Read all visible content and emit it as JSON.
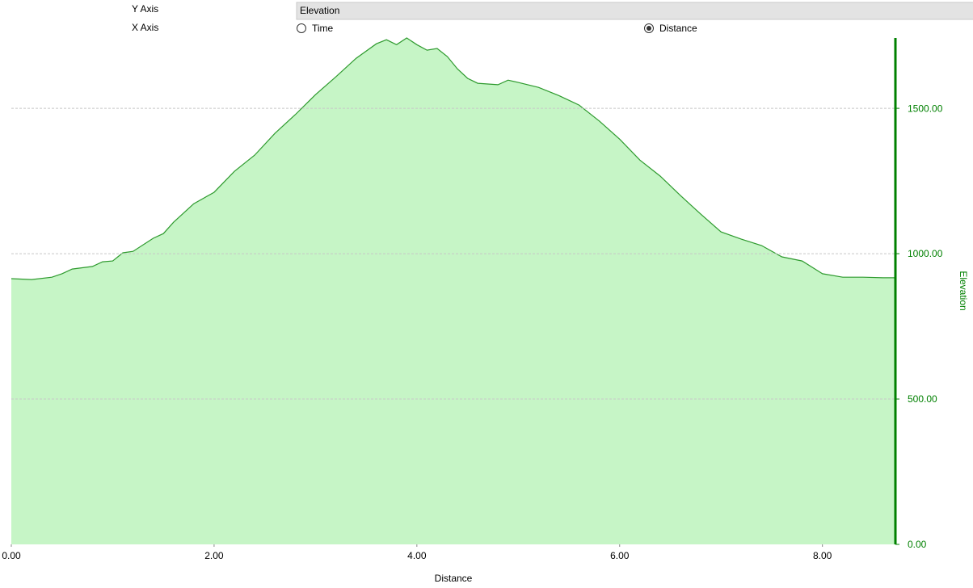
{
  "controls": {
    "y_axis_label": "Y Axis",
    "y_axis_value": "Elevation",
    "x_axis_label": "X Axis",
    "x_options": [
      {
        "label": "Time",
        "selected": false
      },
      {
        "label": "Distance",
        "selected": true
      }
    ]
  },
  "chart_data": {
    "type": "area",
    "x_label": "Distance",
    "y_label": "Elevation",
    "x": [
      0,
      0.2,
      0.4,
      0.5,
      0.6,
      0.8,
      0.9,
      1.0,
      1.1,
      1.2,
      1.4,
      1.5,
      1.6,
      1.8,
      2.0,
      2.2,
      2.4,
      2.6,
      2.8,
      3.0,
      3.2,
      3.4,
      3.6,
      3.7,
      3.8,
      3.9,
      4.0,
      4.1,
      4.2,
      4.3,
      4.4,
      4.5,
      4.6,
      4.8,
      4.9,
      5.0,
      5.2,
      5.4,
      5.6,
      5.8,
      6.0,
      6.2,
      6.4,
      6.6,
      6.8,
      7.0,
      7.2,
      7.4,
      7.6,
      7.8,
      8.0,
      8.2,
      8.4,
      8.6,
      8.72
    ],
    "values": [
      914,
      911,
      919,
      931,
      947,
      956,
      972,
      975,
      1003,
      1008,
      1053,
      1069,
      1108,
      1172,
      1211,
      1283,
      1339,
      1414,
      1478,
      1547,
      1608,
      1672,
      1722,
      1736,
      1719,
      1742,
      1719,
      1700,
      1706,
      1678,
      1636,
      1603,
      1586,
      1581,
      1597,
      1589,
      1572,
      1544,
      1511,
      1456,
      1394,
      1322,
      1267,
      1200,
      1136,
      1075,
      1050,
      1028,
      989,
      975,
      931,
      919,
      919,
      917,
      917
    ],
    "color": "#2e9a2e",
    "fill_color": "#c6f5c6",
    "axis_color": "#008000",
    "xlim": [
      0,
      8.72
    ],
    "ylim": [
      0,
      1742
    ],
    "xticks": [
      {
        "value": 0,
        "label": "0.00"
      },
      {
        "value": 2,
        "label": "2.00"
      },
      {
        "value": 4,
        "label": "4.00"
      },
      {
        "value": 6,
        "label": "6.00"
      },
      {
        "value": 8,
        "label": "8.00"
      }
    ],
    "yticks": [
      {
        "value": 0,
        "label": "0.00"
      },
      {
        "value": 500,
        "label": "500.00"
      },
      {
        "value": 1000,
        "label": "1000.00"
      },
      {
        "value": 1500,
        "label": "1500.00"
      }
    ],
    "grid": true
  }
}
